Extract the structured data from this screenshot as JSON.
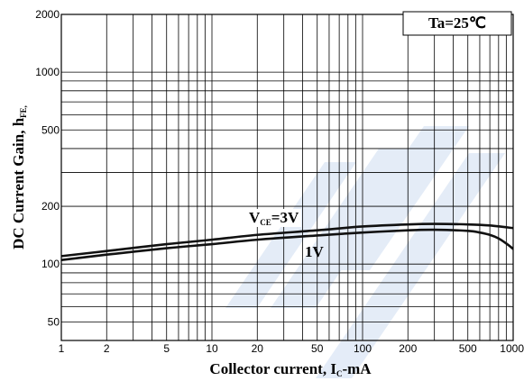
{
  "chart_data": {
    "type": "line",
    "xlabel": {
      "main": "Collector current, I",
      "sub": "C",
      "tail": "-mA"
    },
    "ylabel": {
      "main": "DC Current Gain, h",
      "sub": "FE,"
    },
    "x_scale": "log",
    "y_scale": "log",
    "xlim": [
      1,
      1000
    ],
    "ylim": [
      40,
      2000
    ],
    "x_ticks": [
      "1",
      "2",
      "5",
      "10",
      "20",
      "50",
      "100",
      "200",
      "500",
      "1000"
    ],
    "y_ticks": [
      "50",
      "100",
      "200",
      "500",
      "1000",
      "2000"
    ],
    "grid": true,
    "annotation": {
      "text": "Ta=25℃"
    },
    "series": [
      {
        "name": "VCE=3V",
        "label": {
          "main": "V",
          "sub": "CE",
          "tail": "=3V"
        },
        "x": [
          1,
          2,
          5,
          10,
          20,
          50,
          100,
          200,
          300,
          500,
          700,
          1000
        ],
        "y": [
          110,
          117,
          127,
          134,
          142,
          150,
          157,
          161,
          162,
          161,
          159,
          154
        ]
      },
      {
        "name": "1V",
        "label": {
          "main": "1V",
          "sub": "",
          "tail": ""
        },
        "x": [
          1,
          2,
          5,
          10,
          20,
          50,
          100,
          200,
          300,
          500,
          600,
          700,
          800,
          900,
          1000
        ],
        "y": [
          105,
          112,
          121,
          127,
          134,
          141,
          146,
          150,
          151,
          149,
          146,
          142,
          136,
          128,
          120
        ]
      }
    ]
  }
}
